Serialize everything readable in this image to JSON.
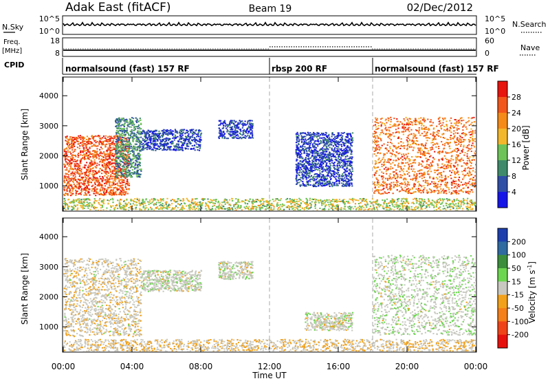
{
  "header": {
    "station": "Adak East (fitACF)",
    "beam": "Beam 19",
    "date": "02/Dec/2012"
  },
  "noise_panel": {
    "left_label": "N.Sky",
    "left_ticks": [
      "10^5",
      "10^0"
    ],
    "right_ticks": [
      "10^5",
      "10^0"
    ],
    "right_label": "N.Search"
  },
  "freq_panel": {
    "left_label_line1": "Freq.",
    "left_label_line2": "[MHz]",
    "left_ticks": [
      "18",
      "8"
    ],
    "right_ticks": [
      "60",
      "0"
    ],
    "right_label": "Nave"
  },
  "cpid_panel": {
    "label": "CPID",
    "segments": [
      {
        "name": "normalsound (fast) 157 RF",
        "start": 0,
        "end": 12
      },
      {
        "name": "rbsp 200 RF",
        "start": 12,
        "end": 18
      },
      {
        "name": "normalsound (fast) 157 RF",
        "start": 18,
        "end": 24
      }
    ]
  },
  "colors": {
    "power": [
      "#1515e8",
      "#2f4ea6",
      "#3f8a6a",
      "#6dc258",
      "#f2b72a",
      "#f58a18",
      "#f2561a",
      "#e8140e"
    ],
    "velocity": [
      "#1d3fae",
      "#2f6aa0",
      "#3b8e3b",
      "#6dd650",
      "#c8c8c0",
      "#f2a11a",
      "#f57f18",
      "#f04418",
      "#e8100d"
    ]
  },
  "chart_data": [
    {
      "type": "heatmap",
      "panel": "power",
      "ylabel": "Slant Range [km]",
      "xlabel": "",
      "xlim": [
        0,
        24
      ],
      "ylim": [
        180,
        4600
      ],
      "y_ticks": [
        "1000",
        "2000",
        "3000",
        "4000"
      ],
      "x_tick_values": [
        0,
        4,
        8,
        12,
        16,
        20,
        24
      ],
      "colorbar": {
        "label": "Power [dB]",
        "range": [
          0,
          32
        ],
        "ticks": [
          "4",
          "8",
          "12",
          "16",
          "20",
          "24",
          "28"
        ]
      },
      "regions": [
        {
          "t": [
            0.0,
            3.8
          ],
          "r": [
            700,
            2700
          ],
          "value": 26
        },
        {
          "t": [
            3.0,
            4.5
          ],
          "r": [
            1300,
            3300
          ],
          "value": 10
        },
        {
          "t": [
            4.5,
            8.0
          ],
          "r": [
            2200,
            2900
          ],
          "value": 5
        },
        {
          "t": [
            9.0,
            11.0
          ],
          "r": [
            2600,
            3200
          ],
          "value": 5
        },
        {
          "t": [
            13.5,
            16.8
          ],
          "r": [
            1000,
            2800
          ],
          "value": 5
        },
        {
          "t": [
            18.0,
            24.0
          ],
          "r": [
            750,
            3300
          ],
          "value": 24
        },
        {
          "t": [
            0.0,
            24.0
          ],
          "r": [
            180,
            600
          ],
          "value": 16
        }
      ]
    },
    {
      "type": "heatmap",
      "panel": "velocity",
      "ylabel": "Slant Range [km]",
      "xlabel": "Time UT",
      "xlim": [
        0,
        24
      ],
      "ylim": [
        180,
        4600
      ],
      "y_ticks": [
        "1000",
        "2000",
        "3000",
        "4000"
      ],
      "x_ticks": [
        "00:00",
        "04:00",
        "08:00",
        "12:00",
        "16:00",
        "20:00",
        "00:00"
      ],
      "x_tick_values": [
        0,
        4,
        8,
        12,
        16,
        20,
        24
      ],
      "colorbar": {
        "label": "Velocity [m s^-1]",
        "range": [
          -250,
          250
        ],
        "ticks": [
          "200",
          "100",
          "50",
          "15",
          "-15",
          "-50",
          "-100",
          "-200"
        ]
      },
      "regions": [
        {
          "t": [
            0.0,
            4.5
          ],
          "r": [
            700,
            3300
          ],
          "value": -10
        },
        {
          "t": [
            4.5,
            8.0
          ],
          "r": [
            2200,
            2900
          ],
          "value": 5
        },
        {
          "t": [
            9.0,
            11.0
          ],
          "r": [
            2600,
            3200
          ],
          "value": 5
        },
        {
          "t": [
            14.0,
            16.8
          ],
          "r": [
            900,
            1500
          ],
          "value": 0
        },
        {
          "t": [
            18.0,
            24.0
          ],
          "r": [
            750,
            3400
          ],
          "value": 10
        },
        {
          "t": [
            0.0,
            24.0
          ],
          "r": [
            180,
            600
          ],
          "value": -20
        }
      ]
    }
  ]
}
